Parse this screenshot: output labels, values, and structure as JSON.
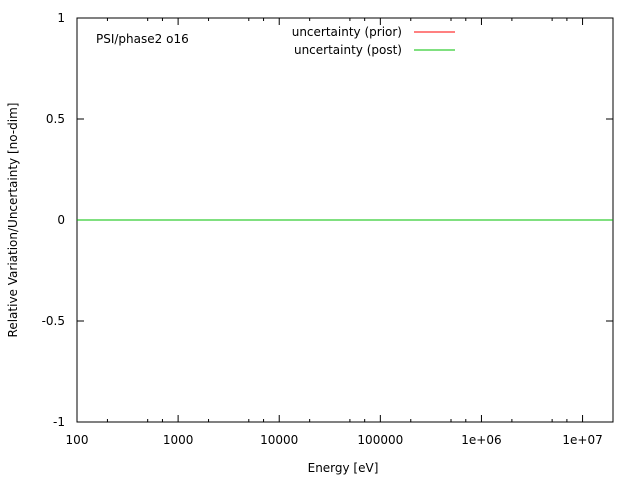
{
  "chart_data": {
    "type": "line",
    "title": "",
    "annotation": "PSI/phase2 o16",
    "xlabel": "Energy [eV]",
    "ylabel": "Relative Variation/Uncertainty [no-dim]",
    "xscale": "log",
    "xlim": [
      100,
      20000000
    ],
    "ylim": [
      -1,
      1
    ],
    "xticks": [
      100,
      1000,
      10000,
      100000,
      1000000,
      10000000
    ],
    "xtick_labels": [
      "100",
      "1000",
      "10000",
      "100000",
      "1e+06",
      "1e+07"
    ],
    "yticks": [
      -1,
      -0.5,
      0,
      0.5,
      1
    ],
    "ytick_labels": [
      "-1",
      "-0.5",
      "0",
      "0.5",
      "1"
    ],
    "grid": false,
    "legend_placement": "top-center",
    "series": [
      {
        "name": "uncertainty (prior)",
        "color": "#ff0000",
        "x": [
          100,
          20000000
        ],
        "y": [
          0,
          0
        ]
      },
      {
        "name": "uncertainty (post)",
        "color": "#00c000",
        "x": [
          100,
          20000000
        ],
        "y": [
          0,
          0
        ]
      }
    ]
  }
}
